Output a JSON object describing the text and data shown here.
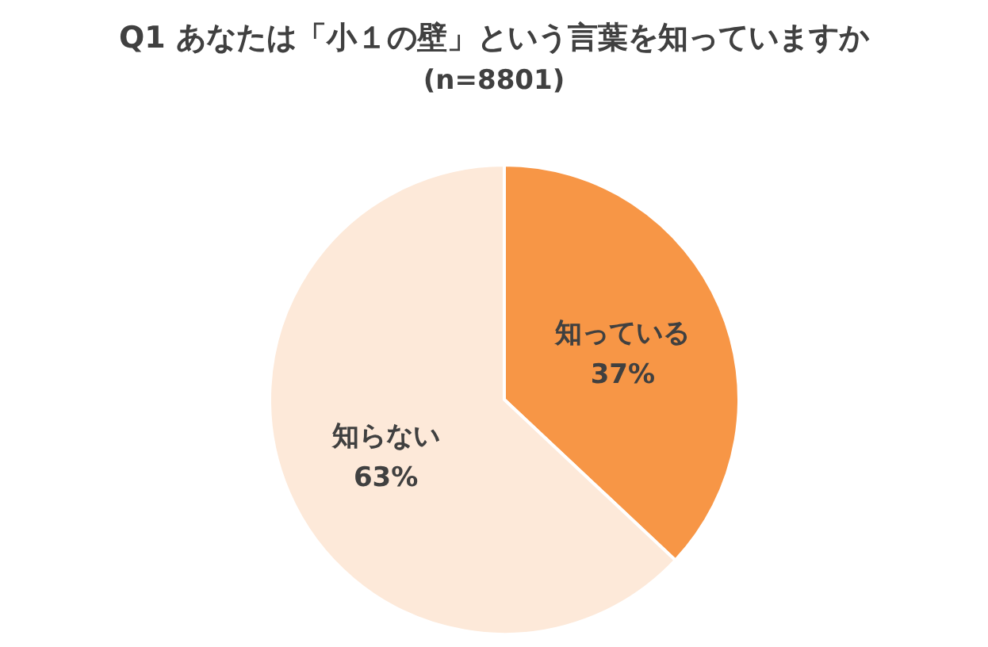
{
  "chart_data": {
    "type": "pie",
    "title": "Q1 あなたは「小１の壁」という言葉を知っていますか",
    "subtitle": "(n=8801)",
    "categories": [
      "知っている",
      "知らない"
    ],
    "values": [
      37,
      63
    ],
    "colors": [
      "#f79646",
      "#fde9d9"
    ],
    "value_labels": [
      "37%",
      "63%"
    ]
  }
}
